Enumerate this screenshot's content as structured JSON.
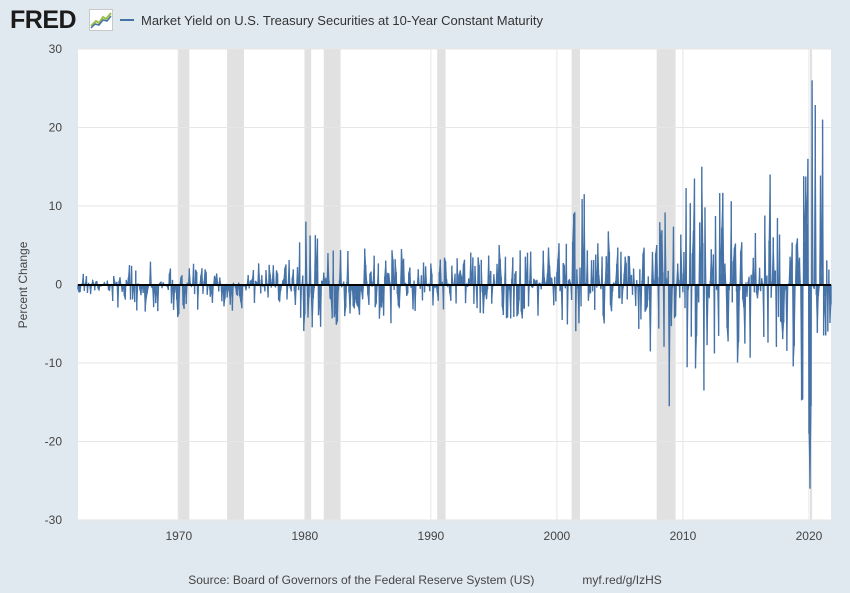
{
  "logo": {
    "text": "FRED",
    "icon": "fred-sparkline-icon"
  },
  "legend": {
    "label": "Market Yield on U.S. Treasury Securities at 10-Year Constant Maturity",
    "color": "#4572a7"
  },
  "footer": {
    "source": "Source: Board of Governors of the Federal Reserve System (US)",
    "url": "myf.red/g/IzHS"
  },
  "colors": {
    "page_background": "#e1e9f0",
    "plot_background": "#ffffff",
    "series": "#4572a7",
    "recession": "#e1e1e1",
    "zero_line": "#000000",
    "grid": "#e6e6e6"
  },
  "chart_data": {
    "type": "bar",
    "title": "",
    "xlabel": "",
    "ylabel": "Percent Change",
    "ylim": [
      -30,
      30
    ],
    "y_ticks": [
      30,
      20,
      10,
      0,
      -10,
      -20,
      -30
    ],
    "x_ticks": [
      "1970",
      "1980",
      "1990",
      "2000",
      "2010",
      "2020"
    ],
    "xlim": [
      "1962-01",
      "2021-10"
    ],
    "grid": true,
    "legend_placement": "top-left",
    "recessions": [
      [
        "1969-12",
        "1970-11"
      ],
      [
        "1973-11",
        "1975-03"
      ],
      [
        "1980-01",
        "1980-07"
      ],
      [
        "1981-07",
        "1982-11"
      ],
      [
        "1990-07",
        "1991-03"
      ],
      [
        "2001-03",
        "2001-11"
      ],
      [
        "2007-12",
        "2009-06"
      ],
      [
        "2020-02",
        "2020-04"
      ]
    ],
    "series": [
      {
        "name": "Market Yield on U.S. Treasury Securities at 10-Year Constant Maturity",
        "frequency": "monthly",
        "start": "1962-01",
        "envelope": [
          {
            "year": 1962,
            "max": 1.5,
            "min": -1.8
          },
          {
            "year": 1964,
            "max": 0.8,
            "min": -0.8
          },
          {
            "year": 1966,
            "max": 2.5,
            "min": -4.5
          },
          {
            "year": 1968,
            "max": 3.0,
            "min": -3.5
          },
          {
            "year": 1970,
            "max": 4.0,
            "min": -5.0
          },
          {
            "year": 1971,
            "max": 3.5,
            "min": -7.0
          },
          {
            "year": 1973,
            "max": 3.0,
            "min": -3.5
          },
          {
            "year": 1975,
            "max": 3.5,
            "min": -3.5
          },
          {
            "year": 1977,
            "max": 2.5,
            "min": -2.0
          },
          {
            "year": 1979,
            "max": 3.5,
            "min": -3.0
          },
          {
            "year": 1980,
            "max": 8.0,
            "min": -7.0
          },
          {
            "year": 1982,
            "max": 5.0,
            "min": -7.0
          },
          {
            "year": 1984,
            "max": 5.0,
            "min": -4.0
          },
          {
            "year": 1986,
            "max": 5.0,
            "min": -7.0
          },
          {
            "year": 1988,
            "max": 4.5,
            "min": -4.0
          },
          {
            "year": 1990,
            "max": 3.5,
            "min": -3.0
          },
          {
            "year": 1993,
            "max": 4.0,
            "min": -4.0
          },
          {
            "year": 1996,
            "max": 5.5,
            "min": -4.5
          },
          {
            "year": 1999,
            "max": 4.5,
            "min": -5.0
          },
          {
            "year": 2001,
            "max": 8.5,
            "min": -6.0
          },
          {
            "year": 2002,
            "max": 11.5,
            "min": -8.0
          },
          {
            "year": 2004,
            "max": 7.0,
            "min": -6.0
          },
          {
            "year": 2006,
            "max": 5.0,
            "min": -5.0
          },
          {
            "year": 2008,
            "max": 9.0,
            "min": -15.5
          },
          {
            "year": 2009,
            "max": 11.0,
            "min": -7.0
          },
          {
            "year": 2011,
            "max": 15.0,
            "min": -13.5
          },
          {
            "year": 2013,
            "max": 13.0,
            "min": -10.0
          },
          {
            "year": 2015,
            "max": 10.5,
            "min": -10.0
          },
          {
            "year": 2016,
            "max": 14.0,
            "min": -12.0
          },
          {
            "year": 2018,
            "max": 9.5,
            "min": -9.0
          },
          {
            "year": 2019,
            "max": 16.0,
            "min": -13.0
          },
          {
            "year": 2020,
            "max": 26.0,
            "min": -26.0
          },
          {
            "year": 2021,
            "max": 21.0,
            "min": -9.0
          }
        ]
      }
    ]
  }
}
